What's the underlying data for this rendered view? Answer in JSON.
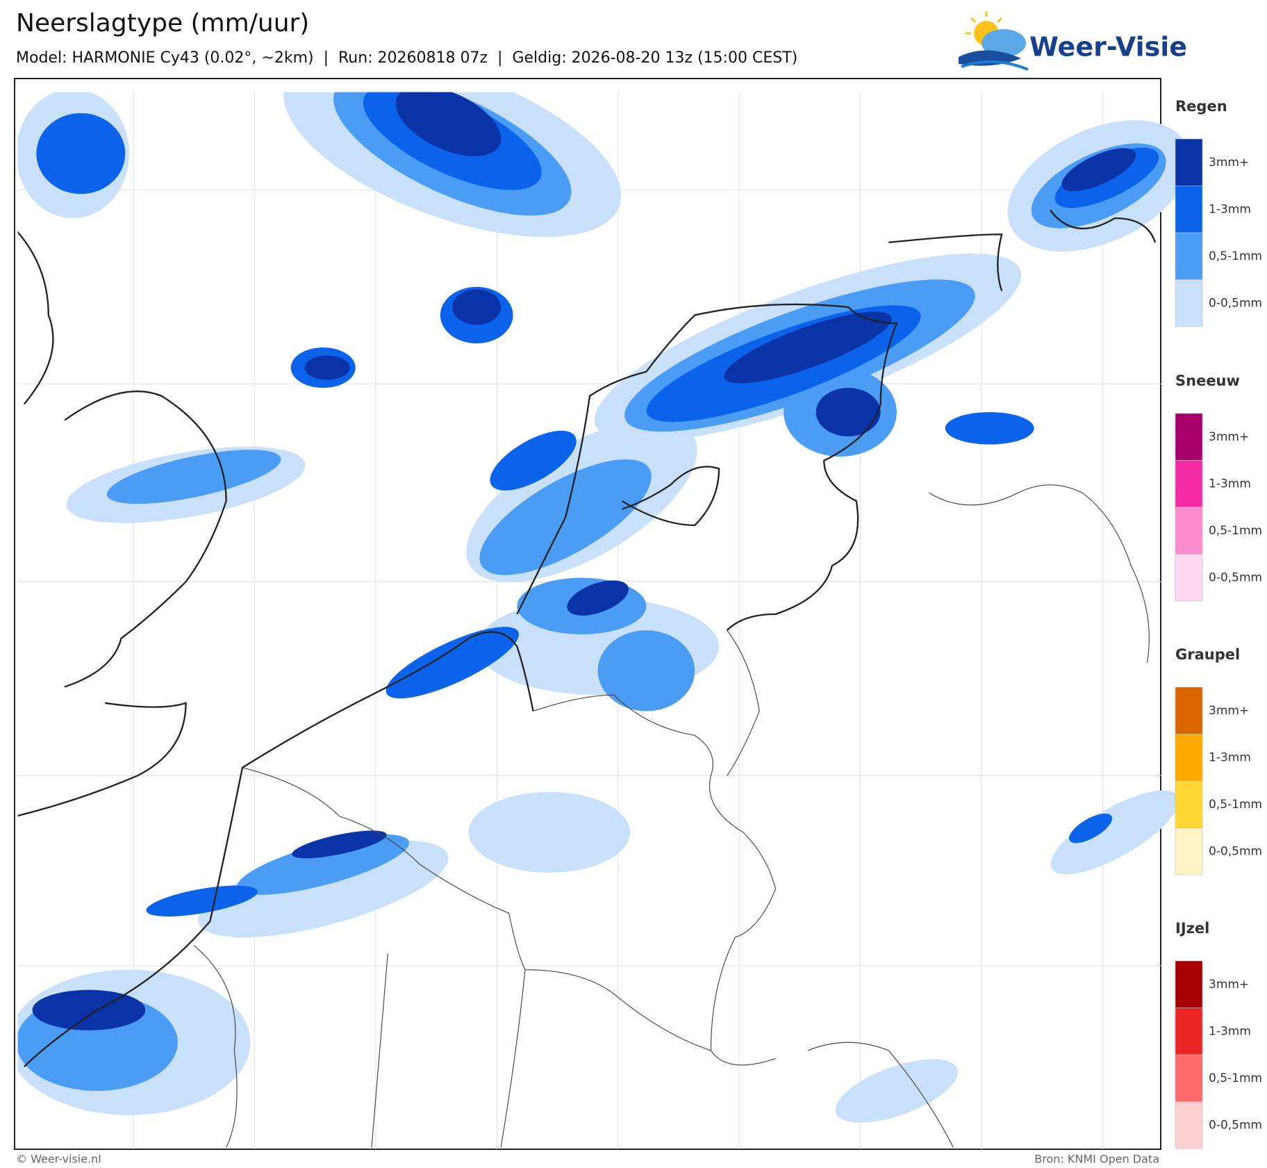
{
  "header": {
    "title": "Neerslagtype (mm/uur)",
    "subtitle": "Model: HARMONIE Cy43 (0.02°, ~2km)  |  Run: 20260818 07z  |  Geldig: 2026-08-20 13z (15:00 CEST)",
    "logo": "Weer-Visie"
  },
  "legend": {
    "groups": [
      {
        "title": "Regen",
        "items": [
          {
            "label": "3mm+",
            "color": "#0a33a8"
          },
          {
            "label": "1-3mm",
            "color": "#0a63ea"
          },
          {
            "label": "0,5-1mm",
            "color": "#4b9cf5"
          },
          {
            "label": "0-0,5mm",
            "color": "#c9e0fb"
          }
        ]
      },
      {
        "title": "Sneeuw",
        "items": [
          {
            "label": "3mm+",
            "color": "#a8006a"
          },
          {
            "label": "1-3mm",
            "color": "#f52aa6"
          },
          {
            "label": "0,5-1mm",
            "color": "#fb8ccd"
          },
          {
            "label": "0-0,5mm",
            "color": "#fdd8ee"
          }
        ]
      },
      {
        "title": "Graupel",
        "items": [
          {
            "label": "3mm+",
            "color": "#dc6400"
          },
          {
            "label": "1-3mm",
            "color": "#ffaa00"
          },
          {
            "label": "0,5-1mm",
            "color": "#ffd633"
          },
          {
            "label": "0-0,5mm",
            "color": "#fff2c4"
          }
        ]
      },
      {
        "title": "IJzel",
        "items": [
          {
            "label": "3mm+",
            "color": "#a80000"
          },
          {
            "label": "1-3mm",
            "color": "#ec2424"
          },
          {
            "label": "0,5-1mm",
            "color": "#fd6a6a"
          },
          {
            "label": "0-0,5mm",
            "color": "#fdd0d0"
          }
        ]
      }
    ]
  },
  "footer": {
    "copyright": "© Weer-visie.nl",
    "source": "Bron: KNMI Open Data"
  }
}
